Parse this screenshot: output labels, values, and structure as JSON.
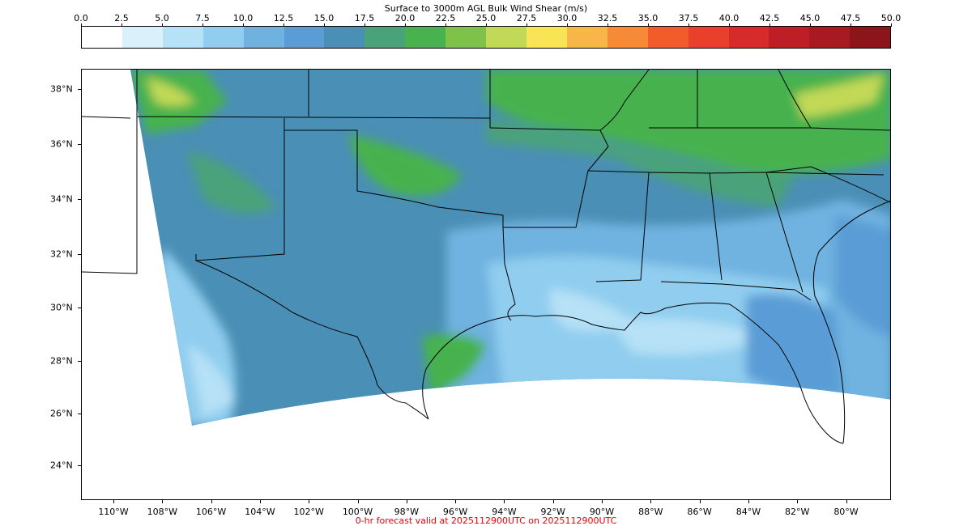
{
  "title": "Surface to 3000m AGL Bulk Wind Shear (m/s)",
  "colorbar": {
    "ticks": [
      "0.0",
      "2.5",
      "5.0",
      "7.5",
      "10.0",
      "12.5",
      "15.0",
      "17.5",
      "20.0",
      "22.5",
      "25.0",
      "27.5",
      "30.0",
      "32.5",
      "35.0",
      "37.5",
      "40.0",
      "42.5",
      "45.0",
      "47.5",
      "50.0"
    ],
    "colors": [
      "#ffffff",
      "#daf0fb",
      "#b6e1f6",
      "#90cdef",
      "#6fb2e0",
      "#5a9dd6",
      "#4a8fb5",
      "#48a27a",
      "#47b24e",
      "#7fc24a",
      "#c2d957",
      "#f7e556",
      "#f8b548",
      "#f68a36",
      "#f25c2a",
      "#e8402a",
      "#d72a2a",
      "#be1e26",
      "#a81a22",
      "#8c151c"
    ]
  },
  "map": {
    "lat_labels": [
      "38°N",
      "36°N",
      "34°N",
      "32°N",
      "30°N",
      "28°N",
      "26°N",
      "24°N"
    ],
    "lon_labels": [
      "110°W",
      "108°W",
      "106°W",
      "104°W",
      "102°W",
      "100°W",
      "98°W",
      "96°W",
      "94°W",
      "92°W",
      "90°W",
      "88°W",
      "86°W",
      "84°W",
      "82°W",
      "80°W"
    ],
    "field_colors": {
      "base": "#4a8fb5",
      "light_blue": "#6fb2e0",
      "mid_blue": "#5a9dd6",
      "pale_blue": "#90cdef",
      "very_pale": "#b6e1f6",
      "green": "#47b24e",
      "teal_green": "#48a27a",
      "yellow_green": "#c2d957"
    }
  },
  "footer": "0-hr forecast valid at 2025112900UTC on 2025112900UTC"
}
